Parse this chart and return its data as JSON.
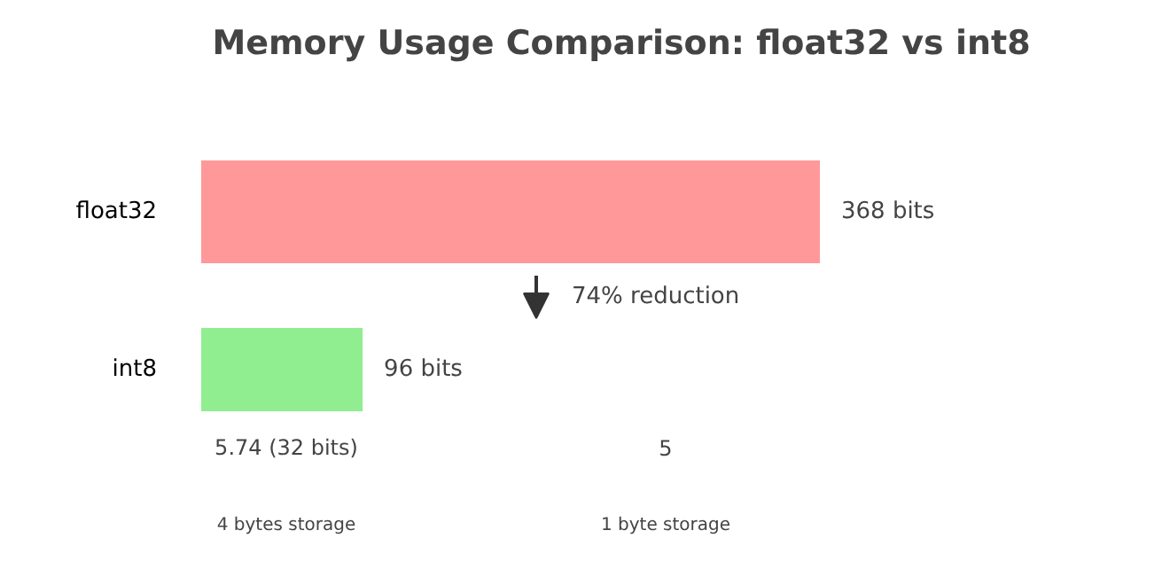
{
  "chart_data": {
    "type": "bar",
    "orientation": "horizontal",
    "title": "Memory Usage Comparison: float32 vs int8",
    "categories": [
      "float32",
      "int8"
    ],
    "values": [
      368,
      96
    ],
    "colors": [
      "#ff9999",
      "#90ee90"
    ],
    "value_labels": [
      "368 bits",
      "96 bits"
    ],
    "grid": false,
    "annotations": [
      "74% reduction",
      "5.74 (32 bits)",
      "5",
      "4 bytes storage",
      "1 byte storage"
    ]
  }
}
